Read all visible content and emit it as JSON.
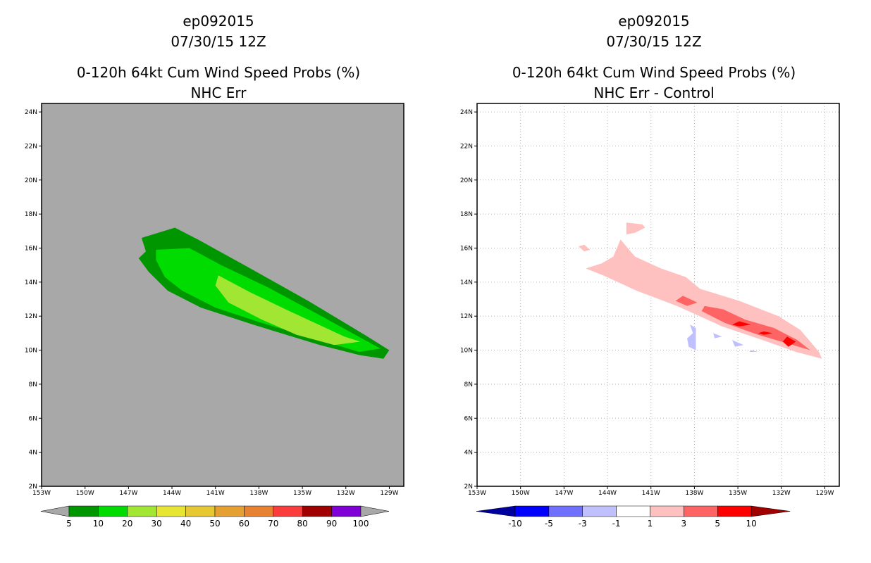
{
  "chart_data": [
    {
      "type": "heatmap",
      "title_lines": [
        "ep092015",
        "07/30/15 12Z",
        "0-120h 64kt Cum Wind Speed Probs (%)",
        "NHC Err"
      ],
      "xlabel": "",
      "ylabel": "",
      "xlim": [
        -153,
        -128
      ],
      "ylim": [
        2,
        24.5
      ],
      "x_ticks": [
        -153,
        -150,
        -147,
        -144,
        -141,
        -138,
        -135,
        -132,
        -129
      ],
      "x_tick_labels": [
        "153W",
        "150W",
        "147W",
        "144W",
        "141W",
        "138W",
        "135W",
        "132W",
        "129W"
      ],
      "y_ticks": [
        2,
        4,
        6,
        8,
        10,
        12,
        14,
        16,
        18,
        20,
        22,
        24
      ],
      "y_tick_labels": [
        "2N",
        "4N",
        "6N",
        "8N",
        "10N",
        "12N",
        "14N",
        "16N",
        "18N",
        "20N",
        "22N",
        "24N"
      ],
      "grid": false,
      "background": "#a8a8a8",
      "colorbar": {
        "labels": [
          "5",
          "10",
          "20",
          "30",
          "40",
          "50",
          "60",
          "70",
          "80",
          "90",
          "100"
        ],
        "colors": [
          "#009600",
          "#00dc00",
          "#a0e632",
          "#e6e632",
          "#e6c832",
          "#e6a032",
          "#e68232",
          "#fa3c3c",
          "#a00000",
          "#8000d8"
        ],
        "end_colors": [
          "#a8a8a8",
          "#a8a8a8"
        ]
      },
      "contours": [
        {
          "level": 5,
          "color": "#009600",
          "points": [
            [
              -146.1,
              16.6
            ],
            [
              -143.8,
              17.2
            ],
            [
              -142.2,
              16.5
            ],
            [
              -139.0,
              15.0
            ],
            [
              -134.6,
              12.9
            ],
            [
              -130.7,
              10.9
            ],
            [
              -129.0,
              10.0
            ],
            [
              -129.4,
              9.5
            ],
            [
              -131.0,
              9.7
            ],
            [
              -133.8,
              10.3
            ],
            [
              -138.4,
              11.5
            ],
            [
              -142.0,
              12.5
            ],
            [
              -144.3,
              13.5
            ],
            [
              -145.6,
              14.6
            ],
            [
              -146.3,
              15.4
            ],
            [
              -145.8,
              15.8
            ]
          ]
        },
        {
          "level": 10,
          "color": "#00dc00",
          "points": [
            [
              -145.1,
              15.9
            ],
            [
              -142.8,
              16.0
            ],
            [
              -140.6,
              15.0
            ],
            [
              -137.4,
              13.7
            ],
            [
              -133.9,
              12.1
            ],
            [
              -130.7,
              10.6
            ],
            [
              -129.6,
              10.1
            ],
            [
              -131.1,
              9.9
            ],
            [
              -134.2,
              10.7
            ],
            [
              -137.8,
              11.6
            ],
            [
              -141.0,
              12.5
            ],
            [
              -143.3,
              13.5
            ],
            [
              -144.5,
              14.3
            ],
            [
              -145.1,
              15.3
            ]
          ]
        },
        {
          "level": 20,
          "color": "#a0e632",
          "points": [
            [
              -140.8,
              14.4
            ],
            [
              -138.6,
              13.4
            ],
            [
              -135.9,
              12.3
            ],
            [
              -132.1,
              10.8
            ],
            [
              -131.0,
              10.5
            ],
            [
              -132.8,
              10.3
            ],
            [
              -135.4,
              10.9
            ],
            [
              -137.8,
              11.8
            ],
            [
              -140.1,
              12.8
            ],
            [
              -141.0,
              13.8
            ]
          ]
        }
      ]
    },
    {
      "type": "heatmap",
      "title_lines": [
        "ep092015",
        "07/30/15 12Z",
        "0-120h 64kt Cum Wind Speed Probs (%)",
        "NHC Err - Control"
      ],
      "xlabel": "",
      "ylabel": "",
      "xlim": [
        -153,
        -128
      ],
      "ylim": [
        2,
        24.5
      ],
      "x_ticks": [
        -153,
        -150,
        -147,
        -144,
        -141,
        -138,
        -135,
        -132,
        -129
      ],
      "x_tick_labels": [
        "153W",
        "150W",
        "147W",
        "144W",
        "141W",
        "138W",
        "135W",
        "132W",
        "129W"
      ],
      "y_ticks": [
        2,
        4,
        6,
        8,
        10,
        12,
        14,
        16,
        18,
        20,
        22,
        24
      ],
      "y_tick_labels": [
        "2N",
        "4N",
        "6N",
        "8N",
        "10N",
        "12N",
        "14N",
        "16N",
        "18N",
        "20N",
        "22N",
        "24N"
      ],
      "grid": true,
      "background": "#ffffff",
      "colorbar": {
        "labels": [
          "-10",
          "-5",
          "-3",
          "-1",
          "1",
          "3",
          "5",
          "10"
        ],
        "colors": [
          "#0000a0",
          "#0000ff",
          "#7070ff",
          "#c0c0ff",
          "#ffffff",
          "#ffc0c0",
          "#ff6464",
          "#ff0000",
          "#a00000"
        ]
      },
      "contours": [
        {
          "level": 1,
          "color": "#ffc0c0",
          "points": [
            [
              -143.1,
              16.5
            ],
            [
              -142.1,
              15.5
            ],
            [
              -140.3,
              14.8
            ],
            [
              -138.6,
              14.3
            ],
            [
              -137.6,
              13.6
            ],
            [
              -134.9,
              12.9
            ],
            [
              -132.2,
              12.0
            ],
            [
              -130.7,
              11.2
            ],
            [
              -129.4,
              9.9
            ],
            [
              -129.2,
              9.5
            ],
            [
              -131.0,
              9.9
            ],
            [
              -133.3,
              10.6
            ],
            [
              -136.1,
              11.4
            ],
            [
              -139.2,
              12.6
            ],
            [
              -142.0,
              13.5
            ],
            [
              -144.3,
              14.4
            ],
            [
              -145.5,
              14.8
            ],
            [
              -144.4,
              15.1
            ],
            [
              -143.6,
              15.5
            ]
          ]
        },
        {
          "level": 1,
          "color": "#ffc0c0",
          "points": [
            [
              -142.7,
              17.5
            ],
            [
              -141.6,
              17.4
            ],
            [
              -141.4,
              17.2
            ],
            [
              -142.1,
              16.9
            ],
            [
              -142.7,
              16.8
            ]
          ]
        },
        {
          "level": 1,
          "color": "#ffc0c0",
          "points": [
            [
              -146.0,
              16.1
            ],
            [
              -145.6,
              16.2
            ],
            [
              -145.2,
              15.9
            ],
            [
              -145.6,
              15.8
            ]
          ]
        },
        {
          "level": 3,
          "color": "#ff6464",
          "points": [
            [
              -138.8,
              13.2
            ],
            [
              -137.8,
              12.8
            ],
            [
              -138.5,
              12.6
            ],
            [
              -139.3,
              12.9
            ]
          ]
        },
        {
          "level": 3,
          "color": "#ff6464",
          "points": [
            [
              -137.3,
              12.6
            ],
            [
              -136.0,
              12.4
            ],
            [
              -134.5,
              11.8
            ],
            [
              -132.5,
              11.3
            ],
            [
              -130.9,
              10.6
            ],
            [
              -130.0,
              10.0
            ],
            [
              -131.2,
              10.3
            ],
            [
              -133.6,
              10.9
            ],
            [
              -135.9,
              11.6
            ],
            [
              -137.5,
              12.3
            ]
          ]
        },
        {
          "level": 5,
          "color": "#ff0000",
          "points": [
            [
              -134.9,
              11.7
            ],
            [
              -134.1,
              11.5
            ],
            [
              -134.9,
              11.4
            ],
            [
              -135.4,
              11.5
            ]
          ]
        },
        {
          "level": 5,
          "color": "#ff0000",
          "points": [
            [
              -133.2,
              11.1
            ],
            [
              -132.6,
              11.0
            ],
            [
              -133.2,
              10.9
            ],
            [
              -133.6,
              11.0
            ]
          ]
        },
        {
          "level": 5,
          "color": "#ff0000",
          "points": [
            [
              -131.6,
              10.8
            ],
            [
              -131.0,
              10.5
            ],
            [
              -131.5,
              10.2
            ],
            [
              -131.9,
              10.5
            ]
          ]
        },
        {
          "level": -1,
          "color": "#c0c0ff",
          "points": [
            [
              -138.3,
              11.5
            ],
            [
              -137.9,
              11.3
            ],
            [
              -137.9,
              10.0
            ],
            [
              -138.4,
              10.2
            ],
            [
              -138.5,
              10.7
            ],
            [
              -138.1,
              11.0
            ]
          ]
        },
        {
          "level": -1,
          "color": "#c0c0ff",
          "points": [
            [
              -135.4,
              10.6
            ],
            [
              -134.6,
              10.3
            ],
            [
              -135.2,
              10.2
            ]
          ]
        },
        {
          "level": -1,
          "color": "#c0c0ff",
          "points": [
            [
              -136.7,
              11.0
            ],
            [
              -136.1,
              10.8
            ],
            [
              -136.6,
              10.7
            ]
          ]
        },
        {
          "level": -1,
          "color": "#c0c0ff",
          "points": [
            [
              -134.1,
              10.0
            ],
            [
              -133.6,
              9.9
            ],
            [
              -134.2,
              9.9
            ]
          ]
        }
      ]
    }
  ]
}
